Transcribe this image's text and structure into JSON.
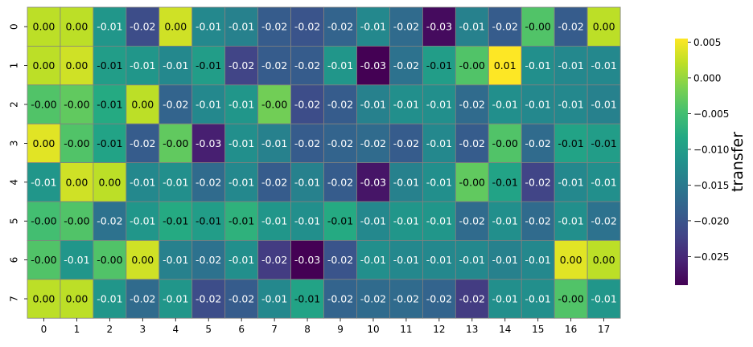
{
  "chart_data": {
    "type": "heatmap",
    "title": "",
    "xlabel": "",
    "ylabel": "",
    "x_categories": [
      "0",
      "1",
      "2",
      "3",
      "4",
      "5",
      "6",
      "7",
      "8",
      "9",
      "10",
      "11",
      "12",
      "13",
      "14",
      "15",
      "16",
      "17"
    ],
    "y_categories": [
      "0",
      "1",
      "2",
      "3",
      "4",
      "5",
      "6",
      "7"
    ],
    "values": [
      [
        0.002,
        0.002,
        -0.011,
        -0.021,
        0.003,
        -0.013,
        -0.014,
        -0.019,
        -0.02,
        -0.018,
        -0.013,
        -0.017,
        -0.028,
        -0.014,
        -0.019,
        -0.004,
        -0.019,
        0.002
      ],
      [
        0.002,
        0.003,
        -0.01,
        -0.011,
        -0.013,
        -0.01,
        -0.022,
        -0.019,
        -0.019,
        -0.011,
        -0.029,
        -0.016,
        -0.01,
        -0.004,
        0.006,
        -0.012,
        -0.013,
        -0.013
      ],
      [
        -0.004,
        -0.003,
        -0.008,
        0.002,
        -0.018,
        -0.013,
        -0.011,
        -0.002,
        -0.021,
        -0.019,
        -0.014,
        -0.012,
        -0.012,
        -0.017,
        -0.012,
        -0.013,
        -0.013,
        -0.014
      ],
      [
        0.004,
        -0.004,
        -0.009,
        -0.019,
        -0.003,
        -0.026,
        -0.012,
        -0.014,
        -0.019,
        -0.018,
        -0.017,
        -0.019,
        -0.013,
        -0.019,
        -0.004,
        -0.017,
        -0.009,
        -0.01
      ],
      [
        -0.011,
        0.003,
        0.002,
        -0.013,
        -0.012,
        -0.017,
        -0.013,
        -0.019,
        -0.014,
        -0.019,
        -0.027,
        -0.014,
        -0.012,
        -0.003,
        -0.009,
        -0.022,
        -0.013,
        -0.012
      ],
      [
        -0.005,
        -0.004,
        -0.016,
        -0.011,
        -0.008,
        -0.01,
        -0.007,
        -0.011,
        -0.012,
        -0.008,
        -0.013,
        -0.011,
        -0.011,
        -0.017,
        -0.012,
        -0.017,
        -0.012,
        -0.016
      ],
      [
        -0.004,
        -0.011,
        -0.004,
        0.003,
        -0.014,
        -0.016,
        -0.012,
        -0.023,
        -0.029,
        -0.02,
        -0.012,
        -0.013,
        -0.013,
        -0.013,
        -0.014,
        -0.013,
        0.004,
        0.002
      ],
      [
        0.002,
        0.002,
        -0.011,
        -0.017,
        -0.011,
        -0.021,
        -0.019,
        -0.013,
        -0.009,
        -0.018,
        -0.017,
        -0.017,
        -0.018,
        -0.023,
        -0.012,
        -0.012,
        -0.004,
        -0.011
      ]
    ],
    "cell_labels": [
      [
        "0.00",
        "0.00",
        "-0.01",
        "-0.02",
        "0.00",
        "-0.01",
        "-0.01",
        "-0.02",
        "-0.02",
        "-0.02",
        "-0.01",
        "-0.02",
        "-0.03",
        "-0.01",
        "-0.02",
        "-0.00",
        "-0.02",
        "0.00"
      ],
      [
        "0.00",
        "0.00",
        "-0.01",
        "-0.01",
        "-0.01",
        "-0.01",
        "-0.02",
        "-0.02",
        "-0.02",
        "-0.01",
        "-0.03",
        "-0.02",
        "-0.01",
        "-0.00",
        "0.01",
        "-0.01",
        "-0.01",
        "-0.01"
      ],
      [
        "-0.00",
        "-0.00",
        "-0.01",
        "0.00",
        "-0.02",
        "-0.01",
        "-0.01",
        "-0.00",
        "-0.02",
        "-0.02",
        "-0.01",
        "-0.01",
        "-0.01",
        "-0.02",
        "-0.01",
        "-0.01",
        "-0.01",
        "-0.01"
      ],
      [
        "0.00",
        "-0.00",
        "-0.01",
        "-0.02",
        "-0.00",
        "-0.03",
        "-0.01",
        "-0.01",
        "-0.02",
        "-0.02",
        "-0.02",
        "-0.02",
        "-0.01",
        "-0.02",
        "-0.00",
        "-0.02",
        "-0.01",
        "-0.01"
      ],
      [
        "-0.01",
        "0.00",
        "0.00",
        "-0.01",
        "-0.01",
        "-0.02",
        "-0.01",
        "-0.02",
        "-0.01",
        "-0.02",
        "-0.03",
        "-0.01",
        "-0.01",
        "-0.00",
        "-0.01",
        "-0.02",
        "-0.01",
        "-0.01"
      ],
      [
        "-0.00",
        "-0.00",
        "-0.02",
        "-0.01",
        "-0.01",
        "-0.01",
        "-0.01",
        "-0.01",
        "-0.01",
        "-0.01",
        "-0.01",
        "-0.01",
        "-0.01",
        "-0.02",
        "-0.01",
        "-0.02",
        "-0.01",
        "-0.02"
      ],
      [
        "-0.00",
        "-0.01",
        "-0.00",
        "0.00",
        "-0.01",
        "-0.02",
        "-0.01",
        "-0.02",
        "-0.03",
        "-0.02",
        "-0.01",
        "-0.01",
        "-0.01",
        "-0.01",
        "-0.01",
        "-0.01",
        "0.00",
        "0.00"
      ],
      [
        "0.00",
        "0.00",
        "-0.01",
        "-0.02",
        "-0.01",
        "-0.02",
        "-0.02",
        "-0.01",
        "-0.01",
        "-0.02",
        "-0.02",
        "-0.02",
        "-0.02",
        "-0.02",
        "-0.01",
        "-0.01",
        "-0.00",
        "-0.01"
      ]
    ],
    "colormap": "viridis",
    "vmin": -0.029,
    "vmax": 0.0055,
    "colorbar": {
      "label": "transfer",
      "ticks": [
        0.005,
        0.0,
        -0.005,
        -0.01,
        -0.015,
        -0.02,
        -0.025
      ],
      "tick_labels": [
        "0.005",
        "0.000",
        "−0.005",
        "−0.010",
        "−0.015",
        "−0.020",
        "−0.025"
      ]
    },
    "grid_line_color": "#808080",
    "annotation_color_dark": "#000000",
    "annotation_color_light": "#ffffff"
  }
}
